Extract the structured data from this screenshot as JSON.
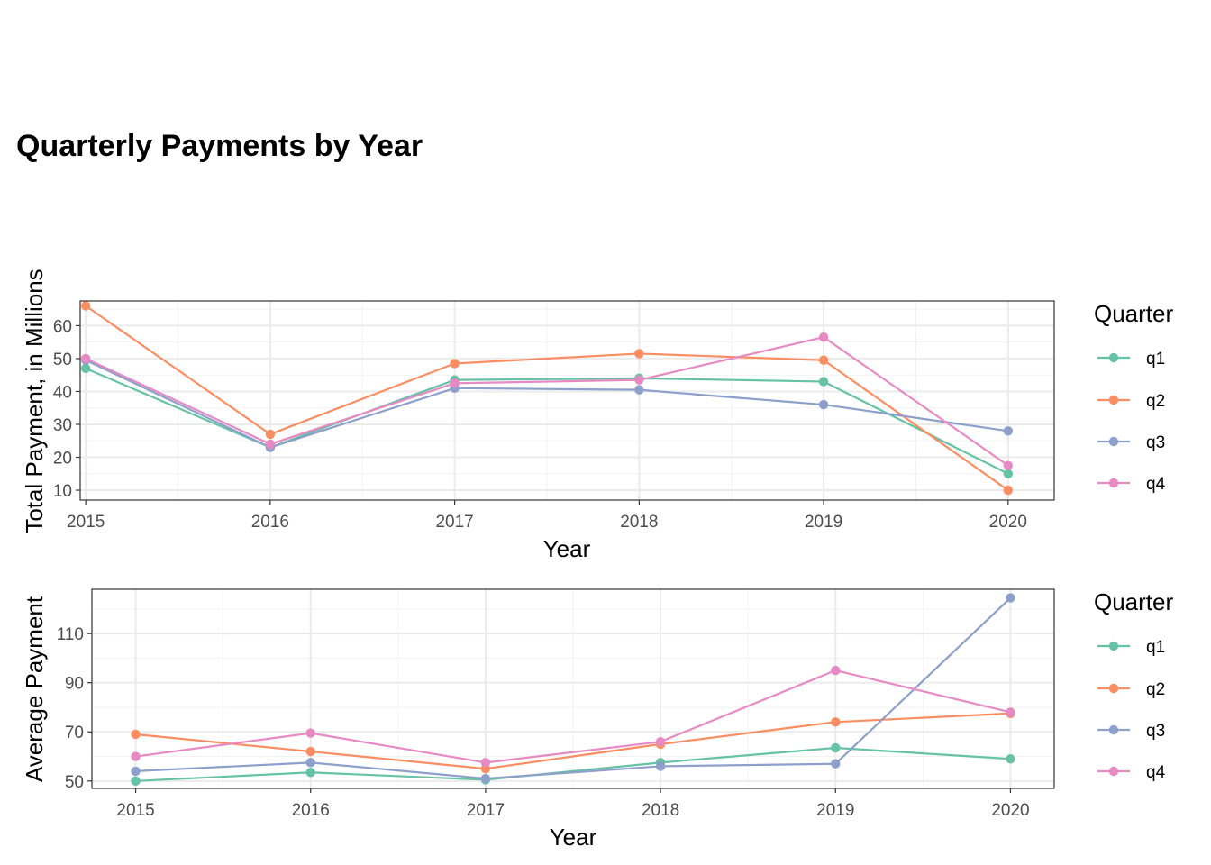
{
  "title": "Quarterly Payments by Year",
  "legend_title": "Quarter",
  "colors": {
    "q1": "#66c2a5",
    "q2": "#fc8d62",
    "q3": "#8da0cb",
    "q4": "#e78ac3"
  },
  "chart_data": [
    {
      "type": "line",
      "title": "",
      "xlabel": "Year",
      "ylabel": "Total Payment, in Millions",
      "x": [
        2015,
        2016,
        2017,
        2018,
        2019,
        2020
      ],
      "xlim": [
        2014.97,
        2020.25
      ],
      "ylim": [
        7,
        67.5
      ],
      "y_ticks": [
        10,
        20,
        30,
        40,
        50,
        60
      ],
      "grid": true,
      "legend_position": "right",
      "series": [
        {
          "name": "q1",
          "values": [
            47.0,
            23.0,
            43.5,
            44.0,
            43.0,
            15.0
          ]
        },
        {
          "name": "q2",
          "values": [
            66.0,
            27.0,
            48.5,
            51.5,
            49.5,
            10.0
          ]
        },
        {
          "name": "q3",
          "values": [
            49.5,
            23.0,
            41.0,
            40.5,
            36.0,
            28.0
          ]
        },
        {
          "name": "q4",
          "values": [
            50.0,
            24.0,
            42.5,
            43.5,
            56.5,
            17.5
          ]
        }
      ]
    },
    {
      "type": "line",
      "title": "",
      "xlabel": "Year",
      "ylabel": "Average Payment",
      "x": [
        2015,
        2016,
        2017,
        2018,
        2019,
        2020
      ],
      "xlim": [
        2014.75,
        2020.25
      ],
      "ylim": [
        47,
        128
      ],
      "y_ticks": [
        50,
        70,
        90,
        110
      ],
      "grid": true,
      "legend_position": "right",
      "series": [
        {
          "name": "q1",
          "values": [
            50.0,
            53.5,
            50.5,
            57.5,
            63.5,
            59.0
          ]
        },
        {
          "name": "q2",
          "values": [
            69.0,
            62.0,
            55.0,
            65.0,
            74.0,
            77.5
          ]
        },
        {
          "name": "q3",
          "values": [
            54.0,
            57.5,
            51.0,
            56.0,
            57.0,
            124.5
          ]
        },
        {
          "name": "q4",
          "values": [
            60.0,
            69.5,
            57.5,
            66.0,
            95.0,
            78.0
          ]
        }
      ]
    }
  ]
}
